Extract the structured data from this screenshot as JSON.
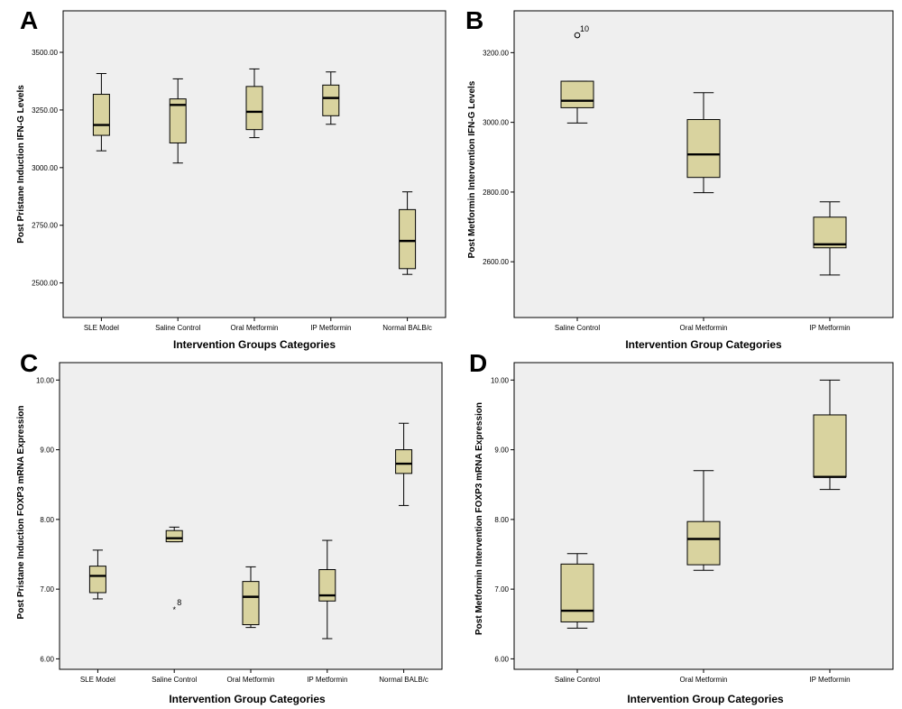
{
  "colors": {
    "box_fill": "#d9d39f",
    "plot_bg": "#efefef",
    "stroke": "#000000"
  },
  "chart_data": [
    {
      "panel": "A",
      "type": "boxplot",
      "xlabel": "Intervention Groups Categories",
      "ylabel": "Post Pristane Induction IFN-G Levels",
      "ylim": [
        2350,
        3680
      ],
      "yticks": [
        2500,
        2750,
        3000,
        3250,
        3500
      ],
      "ytick_labels": [
        "2500.00",
        "2750.00",
        "3000.00",
        "3250.00",
        "3500.00"
      ],
      "categories": [
        "SLE Model",
        "Saline Control",
        "Oral Metformin",
        "IP Metformin",
        "Normal BALB/c"
      ],
      "boxes": [
        {
          "min": 3073,
          "q1": 3140,
          "median": 3185,
          "q3": 3318,
          "max": 3408
        },
        {
          "min": 3020,
          "q1": 3107,
          "median": 3272,
          "q3": 3298,
          "max": 3385
        },
        {
          "min": 3130,
          "q1": 3165,
          "median": 3242,
          "q3": 3352,
          "max": 3428
        },
        {
          "min": 3188,
          "q1": 3225,
          "median": 3302,
          "q3": 3358,
          "max": 3415
        },
        {
          "min": 2537,
          "q1": 2562,
          "median": 2682,
          "q3": 2818,
          "max": 2895
        }
      ],
      "outliers": []
    },
    {
      "panel": "B",
      "type": "boxplot",
      "xlabel": "Intervention Group Categories",
      "ylabel": "Post Metformin Intervention IFN-G Levels",
      "ylim": [
        2440,
        3320
      ],
      "yticks": [
        2600,
        2800,
        3000,
        3200
      ],
      "ytick_labels": [
        "2600.00",
        "2800.00",
        "3000.00",
        "3200.00"
      ],
      "categories": [
        "Saline Control",
        "Oral Metformin",
        "IP Metformin"
      ],
      "boxes": [
        {
          "min": 2998,
          "q1": 3042,
          "median": 3062,
          "q3": 3118,
          "max": 3118
        },
        {
          "min": 2798,
          "q1": 2842,
          "median": 2908,
          "q3": 3008,
          "max": 3085
        },
        {
          "min": 2562,
          "q1": 2640,
          "median": 2650,
          "q3": 2728,
          "max": 2772
        }
      ],
      "outliers": [
        {
          "category": 0,
          "value": 3250,
          "label": "10",
          "marker": "circle"
        }
      ]
    },
    {
      "panel": "C",
      "type": "boxplot",
      "xlabel": "Intervention Group Categories",
      "ylabel": "Post Pristane Induction FOXP3 mRNA Expression",
      "ylim": [
        5.85,
        10.25
      ],
      "yticks": [
        6,
        7,
        8,
        9,
        10
      ],
      "ytick_labels": [
        "6.00",
        "7.00",
        "8.00",
        "9.00",
        "10.00"
      ],
      "categories": [
        "SLE Model",
        "Saline Control",
        "Oral Metformin",
        "IP Metformin",
        "Normal BALB/c"
      ],
      "boxes": [
        {
          "min": 6.86,
          "q1": 6.95,
          "median": 7.19,
          "q3": 7.33,
          "max": 7.56
        },
        {
          "min": 7.68,
          "q1": 7.68,
          "median": 7.73,
          "q3": 7.84,
          "max": 7.89
        },
        {
          "min": 6.45,
          "q1": 6.49,
          "median": 6.89,
          "q3": 7.11,
          "max": 7.32
        },
        {
          "min": 6.29,
          "q1": 6.83,
          "median": 6.91,
          "q3": 7.28,
          "max": 7.7
        },
        {
          "min": 8.2,
          "q1": 8.66,
          "median": 8.8,
          "q3": 9.0,
          "max": 9.38
        }
      ],
      "outliers": [
        {
          "category": 1,
          "value": 6.72,
          "label": "8",
          "marker": "star"
        }
      ]
    },
    {
      "panel": "D",
      "type": "boxplot",
      "xlabel": "Intervention Group Categories",
      "ylabel": "Post Metformin Intervention FOXP3 mRNA Expression",
      "ylim": [
        5.85,
        10.25
      ],
      "yticks": [
        6,
        7,
        8,
        9,
        10
      ],
      "ytick_labels": [
        "6.00",
        "7.00",
        "8.00",
        "9.00",
        "10.00"
      ],
      "categories": [
        "Saline Control",
        "Oral Metformin",
        "IP Metformin"
      ],
      "boxes": [
        {
          "min": 6.44,
          "q1": 6.53,
          "median": 6.69,
          "q3": 7.36,
          "max": 7.51
        },
        {
          "min": 7.27,
          "q1": 7.35,
          "median": 7.72,
          "q3": 7.97,
          "max": 8.7
        },
        {
          "min": 8.43,
          "q1": 8.61,
          "median": 8.61,
          "q3": 9.5,
          "max": 10.0
        }
      ],
      "outliers": []
    }
  ]
}
